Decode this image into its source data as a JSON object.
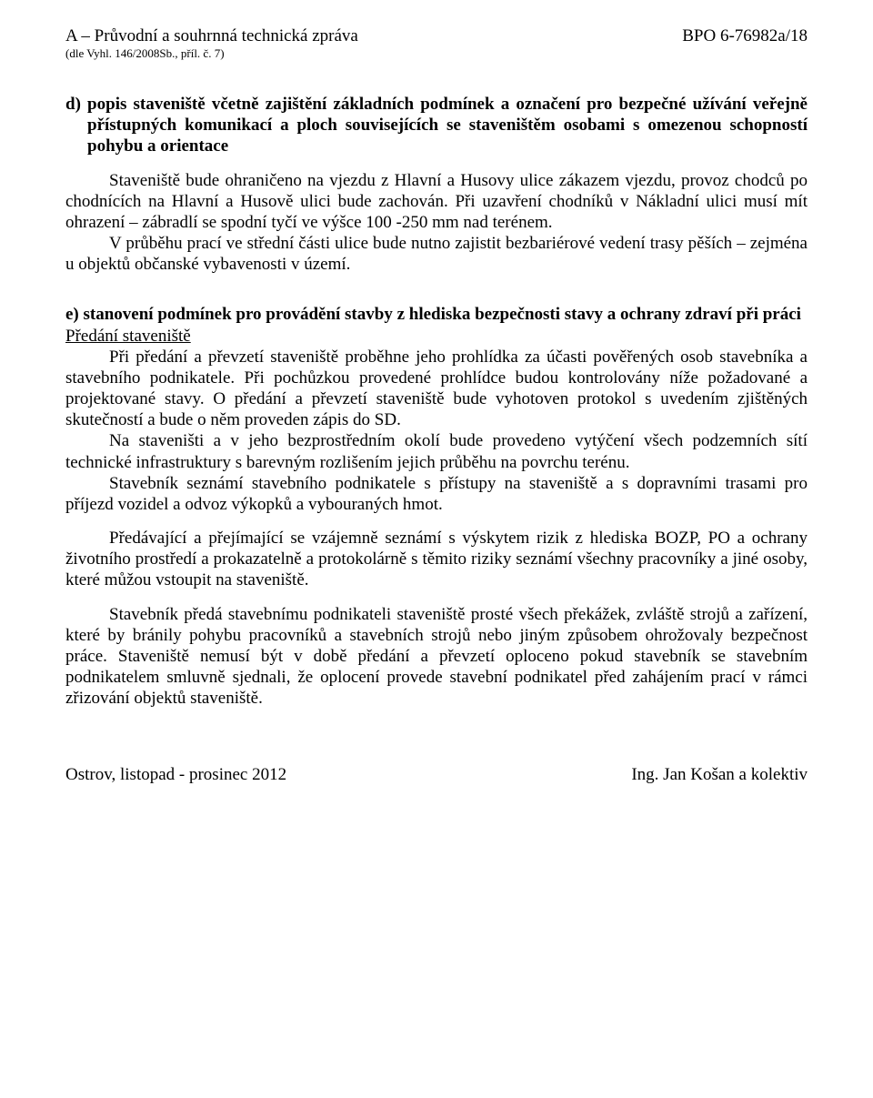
{
  "header": {
    "left_title": "A – Průvodní a souhrnná technická zpráva",
    "left_sub": "(dle Vyhl. 146/2008Sb., příl. č. 7)",
    "right": "BPO 6-76982a/18"
  },
  "section_d": {
    "heading": "d) popis staveniště včetně zajištění základních podmínek a označení pro bezpečné užívání veřejně přístupných komunikací a ploch souvisejících se staveništěm osobami s omezenou schopností pohybu a orientace",
    "p1": "Staveniště bude ohraničeno na vjezdu z Hlavní a Husovy ulice zákazem vjezdu, provoz chodců po chodnících na Hlavní a Husově ulici bude zachován. Při uzavření chodníků v Nákladní ulici musí mít ohrazení – zábradlí se spodní tyčí ve výšce 100 -250 mm nad terénem.",
    "p2": "V průběhu prací ve střední části ulice bude nutno zajistit bezbariérové vedení trasy pěších – zejména u objektů občanské vybavenosti v území."
  },
  "section_e": {
    "heading": "e) stanovení podmínek pro provádění stavby z hlediska bezpečnosti stavy a ochrany zdraví při práci",
    "subheading": "Předání staveniště",
    "p1": "Při předání a převzetí staveniště proběhne jeho prohlídka za účasti pověřených osob stavebníka a stavebního podnikatele. Při pochůzkou provedené prohlídce budou kontrolovány níže požadované a projektované stavy. O předání a převzetí staveniště bude vyhotoven protokol s uvedením zjištěných skutečností a bude o něm proveden zápis do SD.",
    "p2": "Na staveništi a v jeho bezprostředním okolí bude provedeno vytýčení všech podzemních sítí technické infrastruktury s barevným rozlišením jejich průběhu na povrchu terénu.",
    "p3": "Stavebník seznámí stavebního podnikatele s přístupy na staveniště a s dopravními trasami pro příjezd vozidel a odvoz výkopků a vybouraných hmot.",
    "p4": "Předávající a přejímající se vzájemně seznámí s výskytem rizik z hlediska BOZP, PO a ochrany životního prostředí a prokazatelně a protokolárně s těmito riziky seznámí všechny pracovníky a jiné osoby, které můžou vstoupit na staveniště.",
    "p5": "Stavebník předá stavebnímu podnikateli staveniště prosté všech překážek, zvláště strojů a zařízení, které by bránily pohybu pracovníků a stavebních strojů nebo jiným způsobem ohrožovaly bezpečnost práce. Staveniště nemusí být v době předání a převzetí oploceno pokud stavebník se stavebním podnikatelem smluvně sjednali, že oplocení provede stavební podnikatel před zahájením prací v rámci zřizování objektů staveniště."
  },
  "footer": {
    "left": "Ostrov, listopad - prosinec 2012",
    "right": "Ing. Jan Košan a kolektiv"
  }
}
